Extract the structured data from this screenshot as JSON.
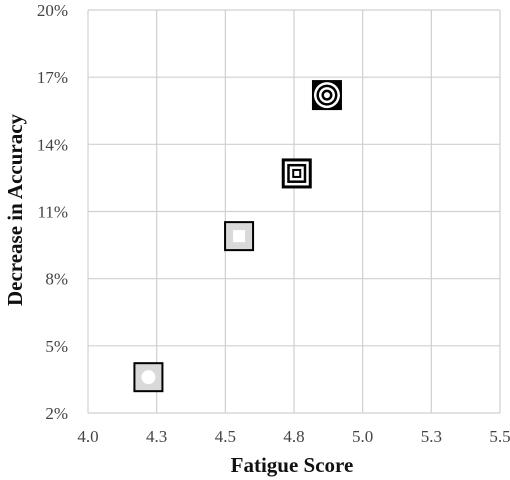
{
  "chart_data": {
    "type": "scatter",
    "title": "",
    "xlabel": "Fatigue Score",
    "ylabel": "Decrease in Accuracy",
    "xlim": [
      4.0,
      5.5
    ],
    "ylim": [
      2,
      20
    ],
    "x_ticks": [
      "4.0",
      "4.3",
      "4.5",
      "4.8",
      "5.0",
      "5.3",
      "5.5"
    ],
    "x_tick_values": [
      4.0,
      4.25,
      4.5,
      4.75,
      5.0,
      5.25,
      5.5
    ],
    "y_ticks": [
      "2%",
      "5%",
      "8%",
      "11%",
      "14%",
      "17%",
      "20%"
    ],
    "y_tick_values": [
      2,
      5,
      8,
      11,
      14,
      17,
      20
    ],
    "grid": true,
    "legend": "none",
    "points": [
      {
        "x": 4.22,
        "y": 3.6,
        "marker": "light-square-ring"
      },
      {
        "x": 4.55,
        "y": 9.9,
        "marker": "light-square-square"
      },
      {
        "x": 4.76,
        "y": 12.7,
        "marker": "concentric-squares"
      },
      {
        "x": 4.87,
        "y": 16.2,
        "marker": "concentric-circles"
      }
    ],
    "colors": {
      "grid": "#d0d0d0",
      "marker_dark": "#000000",
      "marker_light": "#d9d9d9"
    }
  }
}
